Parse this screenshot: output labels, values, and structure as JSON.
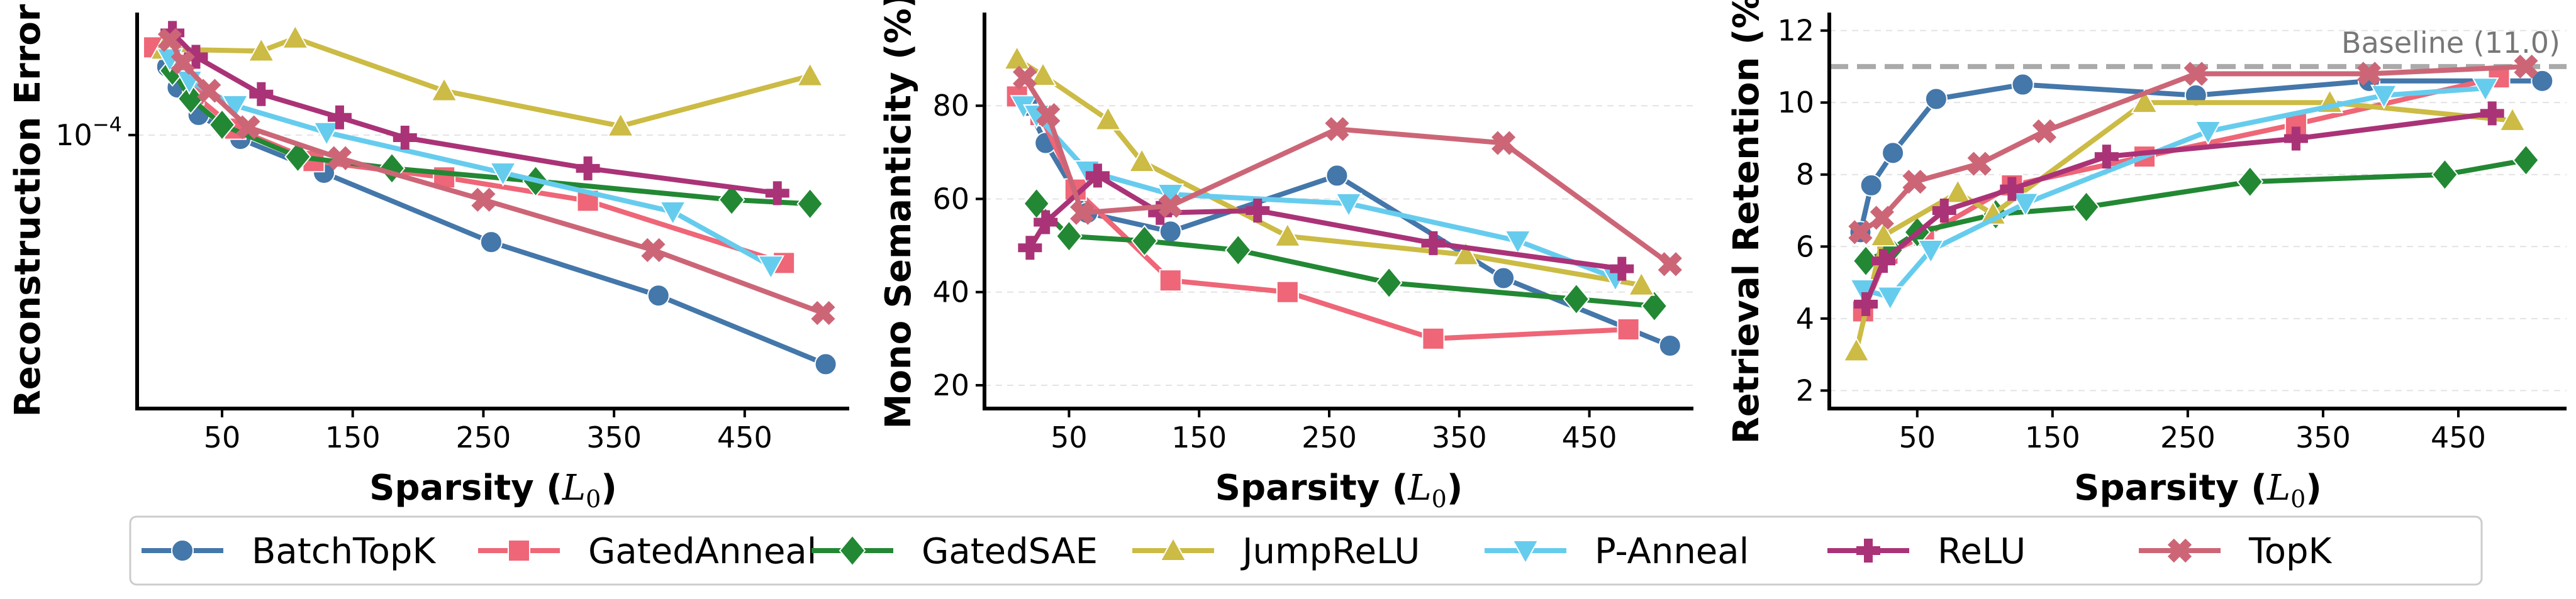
{
  "chart_data": [
    {
      "type": "line",
      "title": "",
      "xlabel": "Sparsity (L0)",
      "ylabel": "Reconstruction Error",
      "yscale": "log",
      "xlim": [
        -15,
        530
      ],
      "ylim": [
        3.5e-05,
        0.00016
      ],
      "xticks": [
        50,
        150,
        250,
        350,
        450
      ],
      "xtick_labels": [
        "50",
        "150",
        "250",
        "350",
        "450"
      ],
      "yticks": [
        0.0001
      ],
      "ytick_labels": [
        "10−4"
      ],
      "grid": "horizontal dashed",
      "series": [
        {
          "name": "BatchTopK",
          "x": [
            8,
            16,
            32,
            64,
            128,
            256,
            384,
            512
          ],
          "y": [
            0.00013,
            0.00012,
            0.000108,
            9.85e-05,
            8.65e-05,
            6.63e-05,
            5.4e-05,
            4.15e-05
          ]
        },
        {
          "name": "GatedAnneal",
          "x": [
            -2,
            15,
            28,
            60,
            120,
            220,
            330,
            480
          ],
          "y": [
            0.00014,
            0.000131,
            0.000117,
            0.0001025,
            9.05e-05,
            8.5e-05,
            7.77e-05,
            6.12e-05
          ]
        },
        {
          "name": "GatedSAE",
          "x": [
            12,
            26,
            50,
            108,
            180,
            290,
            440,
            500
          ],
          "y": [
            0.000128,
            0.000115,
            0.000104,
            9.2e-05,
            8.8e-05,
            8.38e-05,
            7.8e-05,
            7.68e-05
          ]
        },
        {
          "name": "JumpReLU",
          "x": [
            5,
            80,
            106,
            220,
            355,
            500
          ],
          "y": [
            0.000139,
            0.000138,
            0.000145,
            0.0001185,
            0.0001035,
            0.0001255
          ]
        },
        {
          "name": "P-Anneal",
          "x": [
            10,
            25,
            60,
            130,
            265,
            395,
            470
          ],
          "y": [
            0.000134,
            0.000123,
            0.000112,
            0.000101,
            8.65e-05,
            7.45e-05,
            6.05e-05
          ]
        },
        {
          "name": "ReLU",
          "x": [
            12,
            30,
            80,
            140,
            190,
            330,
            475
          ],
          "y": [
            0.000148,
            0.000135,
            0.000117,
            0.000107,
            9.9e-05,
            8.8e-05,
            8e-05
          ]
        },
        {
          "name": "TopK",
          "x": [
            10,
            20,
            40,
            70,
            140,
            250,
            380,
            510
          ],
          "y": [
            0.000144,
            0.000132,
            0.0001185,
            0.000103,
            9.15e-05,
            7.8e-05,
            6.43e-05,
            5.05e-05
          ]
        }
      ]
    },
    {
      "type": "line",
      "title": "",
      "xlabel": "Sparsity (L0)",
      "ylabel": "Mono Semanticity (%)",
      "xlim": [
        -15,
        530
      ],
      "ylim": [
        15,
        100
      ],
      "xticks": [
        50,
        150,
        250,
        350,
        450
      ],
      "xtick_labels": [
        "50",
        "150",
        "250",
        "350",
        "450"
      ],
      "yticks": [
        20,
        40,
        60,
        80
      ],
      "ytick_labels": [
        "20",
        "40",
        "60",
        "80"
      ],
      "grid": "horizontal dashed",
      "series": [
        {
          "name": "BatchTopK",
          "x": [
            18,
            32,
            64,
            128,
            256,
            384,
            512
          ],
          "y": [
            80,
            72,
            57,
            53,
            65,
            43,
            28.5
          ]
        },
        {
          "name": "GatedAnneal",
          "x": [
            10,
            28,
            55,
            128,
            218,
            330,
            480
          ],
          "y": [
            82,
            78,
            62,
            42.5,
            40,
            30,
            32
          ]
        },
        {
          "name": "GatedSAE",
          "x": [
            25,
            50,
            108,
            180,
            296,
            440,
            500
          ],
          "y": [
            59,
            52,
            51,
            49,
            42,
            38.5,
            37
          ]
        },
        {
          "name": "JumpReLU",
          "x": [
            10,
            30,
            80,
            106,
            218,
            355,
            490
          ],
          "y": [
            90,
            86.5,
            77,
            68,
            52,
            48,
            41.5
          ]
        },
        {
          "name": "P-Anneal",
          "x": [
            15,
            25,
            64,
            128,
            265,
            395,
            470
          ],
          "y": [
            80,
            78,
            66,
            61,
            59,
            51,
            43
          ]
        },
        {
          "name": "ReLU",
          "x": [
            20,
            32,
            72,
            120,
            195,
            330,
            475
          ],
          "y": [
            49.5,
            55,
            65,
            57,
            57.5,
            50.5,
            45
          ]
        },
        {
          "name": "TopK",
          "x": [
            16,
            34,
            60,
            128,
            256,
            384,
            512
          ],
          "y": [
            86,
            78,
            57,
            58.5,
            75,
            72,
            46
          ]
        }
      ]
    },
    {
      "type": "line",
      "title": "",
      "xlabel": "Sparsity (L0)",
      "ylabel": "Retrieval Retention (%)",
      "xlim": [
        -15,
        530
      ],
      "ylim": [
        1.5,
        12.5
      ],
      "xticks": [
        50,
        150,
        250,
        350,
        450
      ],
      "xtick_labels": [
        "50",
        "150",
        "250",
        "350",
        "450"
      ],
      "yticks": [
        2,
        4,
        6,
        8,
        10,
        12
      ],
      "ytick_labels": [
        "2",
        "4",
        "6",
        "8",
        "10",
        "12"
      ],
      "grid": "horizontal dashed",
      "baseline": {
        "value": 11.0,
        "label": "Baseline (11.0)"
      },
      "series": [
        {
          "name": "BatchTopK",
          "x": [
            8,
            16,
            32,
            64,
            128,
            256,
            384,
            512
          ],
          "y": [
            6.4,
            7.7,
            8.6,
            10.1,
            10.5,
            10.2,
            10.6,
            10.6
          ]
        },
        {
          "name": "GatedAnneal",
          "x": [
            10,
            28,
            55,
            120,
            218,
            330,
            480
          ],
          "y": [
            4.2,
            5.8,
            6.3,
            7.7,
            8.5,
            9.4,
            10.7
          ]
        },
        {
          "name": "GatedSAE",
          "x": [
            12,
            30,
            50,
            108,
            175,
            296,
            440,
            500
          ],
          "y": [
            5.6,
            5.9,
            6.4,
            6.9,
            7.1,
            7.8,
            8.0,
            8.4
          ]
        },
        {
          "name": "JumpReLU",
          "x": [
            5,
            25,
            80,
            106,
            218,
            355,
            490
          ],
          "y": [
            3.1,
            6.3,
            7.5,
            6.9,
            10.0,
            10.0,
            9.5
          ]
        },
        {
          "name": "P-Anneal",
          "x": [
            10,
            30,
            60,
            130,
            265,
            395,
            470
          ],
          "y": [
            4.8,
            4.6,
            5.9,
            7.2,
            9.2,
            10.2,
            10.4
          ]
        },
        {
          "name": "ReLU",
          "x": [
            12,
            25,
            70,
            120,
            190,
            330,
            475
          ],
          "y": [
            4.4,
            5.6,
            7.0,
            7.6,
            8.5,
            9.0,
            9.7
          ]
        },
        {
          "name": "TopK",
          "x": [
            8,
            24,
            48,
            96,
            144,
            256,
            384,
            500
          ],
          "y": [
            6.4,
            6.8,
            7.8,
            8.3,
            9.2,
            10.8,
            10.8,
            11.0
          ]
        }
      ]
    }
  ],
  "styles": {
    "BatchTopK": {
      "color": "#4477aa",
      "marker": "circle"
    },
    "GatedAnneal": {
      "color": "#ee6677",
      "marker": "square"
    },
    "GatedSAE": {
      "color": "#228833",
      "marker": "diamond"
    },
    "JumpReLU": {
      "color": "#ccbb44",
      "marker": "triangle-up"
    },
    "P-Anneal": {
      "color": "#66ccee",
      "marker": "triangle-down"
    },
    "ReLU": {
      "color": "#aa3377",
      "marker": "plus"
    },
    "TopK": {
      "color": "#cc6677",
      "marker": "x"
    }
  },
  "baseline_color": "#aaaaaa",
  "legend": {
    "placement": "bottom",
    "entries": [
      "BatchTopK",
      "GatedAnneal",
      "GatedSAE",
      "JumpReLU",
      "P-Anneal",
      "ReLU",
      "TopK"
    ]
  }
}
